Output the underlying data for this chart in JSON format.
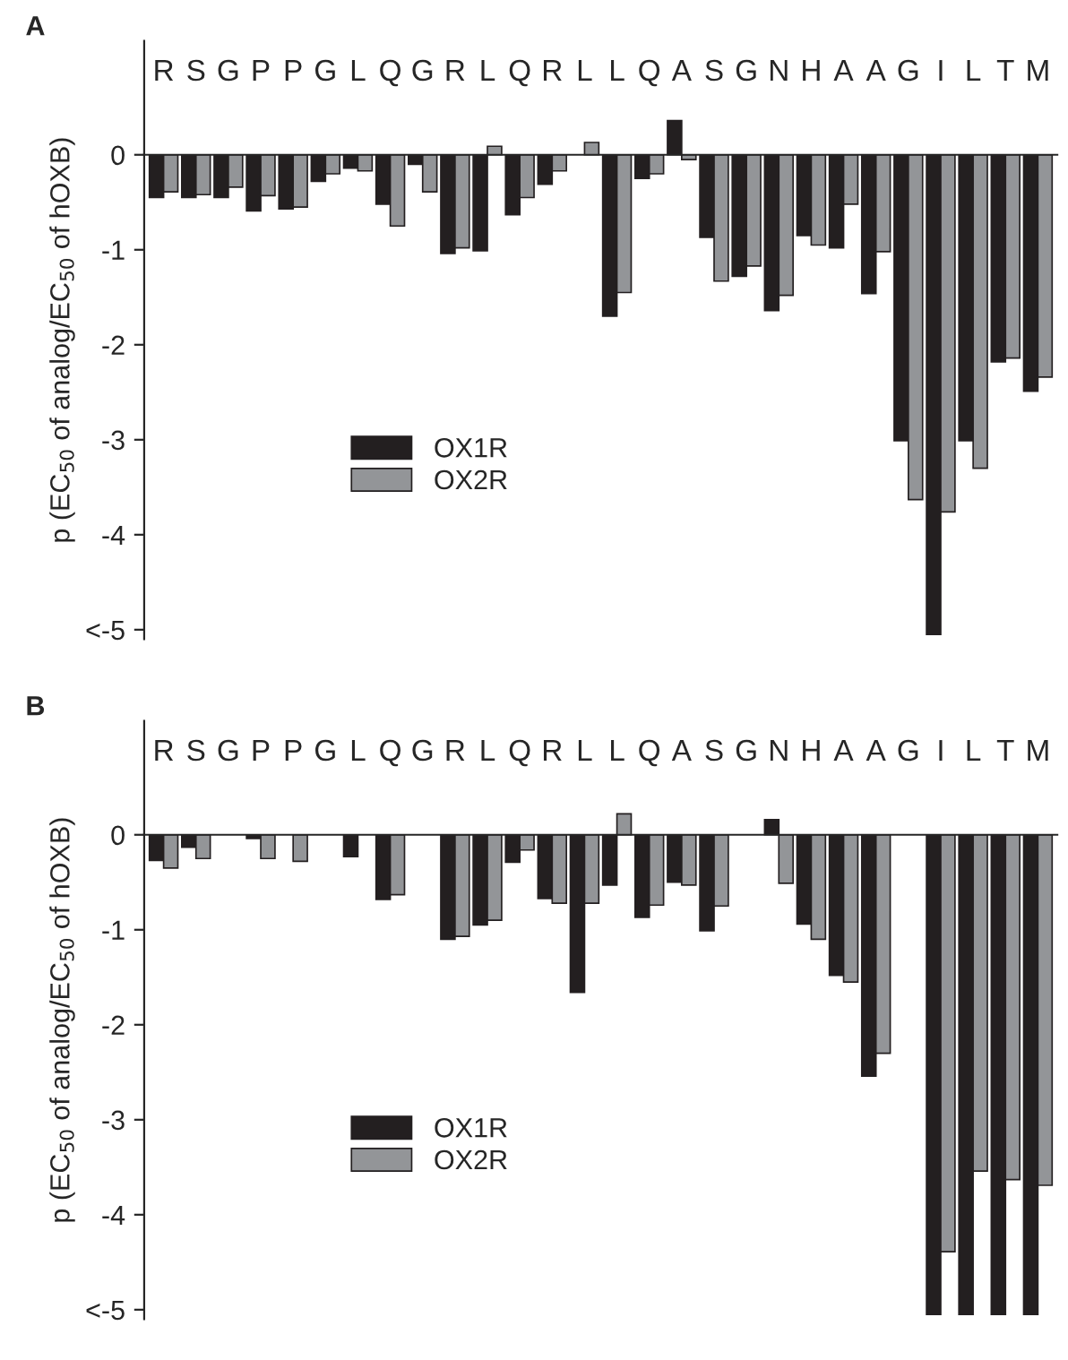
{
  "chart_data": [
    {
      "type": "bar",
      "title": "A",
      "ylabel": "p (EC$_{50}$ of analog/EC$_{50}$ of hOXB)",
      "categories": [
        "R",
        "S",
        "G",
        "P",
        "P",
        "G",
        "L",
        "Q",
        "G",
        "R",
        "L",
        "Q",
        "R",
        "L",
        "L",
        "Q",
        "A",
        "S",
        "G",
        "N",
        "H",
        "A",
        "A",
        "G",
        "I",
        "L",
        "T",
        "M"
      ],
      "series": [
        {
          "name": "OX1R",
          "color": "#231f20",
          "values": [
            -0.45,
            -0.45,
            -0.45,
            -0.59,
            -0.57,
            -0.28,
            -0.14,
            -0.52,
            -0.1,
            -1.04,
            -1.01,
            -0.63,
            -0.31,
            null,
            -1.7,
            -0.25,
            0.36,
            -0.87,
            -1.28,
            -1.64,
            -0.85,
            -0.98,
            -1.46,
            -3.01,
            -5.05,
            -3.01,
            -2.18,
            -2.49
          ]
        },
        {
          "name": "OX2R",
          "color": "#939598",
          "values": [
            -0.39,
            -0.42,
            -0.34,
            -0.43,
            -0.55,
            -0.2,
            -0.17,
            -0.75,
            -0.39,
            -0.98,
            0.09,
            -0.45,
            -0.17,
            0.13,
            -1.45,
            -0.2,
            -0.05,
            -1.33,
            -1.17,
            -1.48,
            -0.95,
            -0.52,
            -1.02,
            -3.63,
            -3.76,
            -3.3,
            -2.14,
            -2.34
          ]
        }
      ],
      "ylim": [
        -5.1,
        1.2
      ],
      "yticks": [
        {
          "value": -5,
          "label": "<-5"
        },
        -4,
        -3,
        -2,
        -1,
        0
      ],
      "legend": "bottom left",
      "grid": false
    },
    {
      "type": "bar",
      "title": "B",
      "ylabel": "p (EC$_{50}$ of analog/EC$_{50}$ of hOXB)",
      "categories": [
        "R",
        "S",
        "G",
        "P",
        "P",
        "G",
        "L",
        "Q",
        "G",
        "R",
        "L",
        "Q",
        "R",
        "L",
        "L",
        "Q",
        "A",
        "S",
        "G",
        "N",
        "H",
        "A",
        "A",
        "G",
        "I",
        "L",
        "T",
        "M"
      ],
      "series": [
        {
          "name": "OX1R",
          "color": "#231f20",
          "values": [
            -0.27,
            -0.13,
            null,
            -0.04,
            null,
            null,
            -0.23,
            -0.68,
            null,
            -1.1,
            -0.95,
            -0.29,
            -0.67,
            -1.66,
            -0.53,
            -0.87,
            -0.5,
            -1.01,
            null,
            0.16,
            -0.94,
            -1.48,
            -2.54,
            null,
            -5.05,
            -5.05,
            -5.05,
            -5.05
          ]
        },
        {
          "name": "OX2R",
          "color": "#939598",
          "values": [
            -0.35,
            -0.25,
            null,
            -0.25,
            -0.28,
            null,
            null,
            -0.63,
            null,
            -1.07,
            -0.9,
            -0.16,
            -0.72,
            -0.72,
            0.22,
            -0.74,
            -0.53,
            -0.75,
            null,
            -0.51,
            -1.1,
            -1.55,
            -2.3,
            null,
            -4.39,
            -3.54,
            -3.63,
            -3.69
          ]
        }
      ],
      "ylim": [
        -5.1,
        1.2
      ],
      "yticks": [
        {
          "value": -5,
          "label": "<-5"
        },
        -4,
        -3,
        -2,
        -1,
        0
      ],
      "legend": "bottom left",
      "grid": false
    }
  ]
}
